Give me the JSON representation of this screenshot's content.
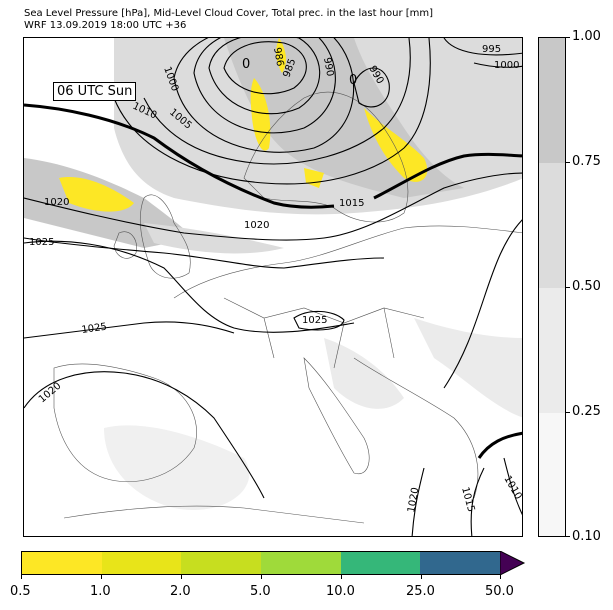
{
  "title": {
    "line1": "Sea Level Pressure [hPa], Mid-Level Cloud Cover, Total prec. in the last hour [mm]",
    "line2": "WRF 13.09.2019 18:00 UTC +36"
  },
  "map": {
    "time_label": "06 UTC Sun",
    "isobar_labels": [
      "0",
      "0",
      "985",
      "990",
      "986",
      "995",
      "990",
      "1000",
      "1005",
      "1010",
      "1000",
      "1015",
      "1020",
      "1020",
      "1025",
      "1025",
      "1025",
      "1020",
      "1020",
      "1015",
      "1010"
    ]
  },
  "cloud_colorbar": {
    "ticks": [
      "1.00",
      "0.75",
      "0.50",
      "0.25",
      "0.10"
    ],
    "colors": [
      "#c8c8c8",
      "#dcdcdc",
      "#ebebeb",
      "#f7f7f7"
    ]
  },
  "precip_colorbar": {
    "ticks": [
      "0.5",
      "1.0",
      "2.0",
      "5.0",
      "10.0",
      "25.0",
      "50.0"
    ],
    "colors": [
      "#fde725",
      "#e8e419",
      "#c7de1f",
      "#9fda3a",
      "#35b779",
      "#31688e",
      "#440154"
    ]
  }
}
